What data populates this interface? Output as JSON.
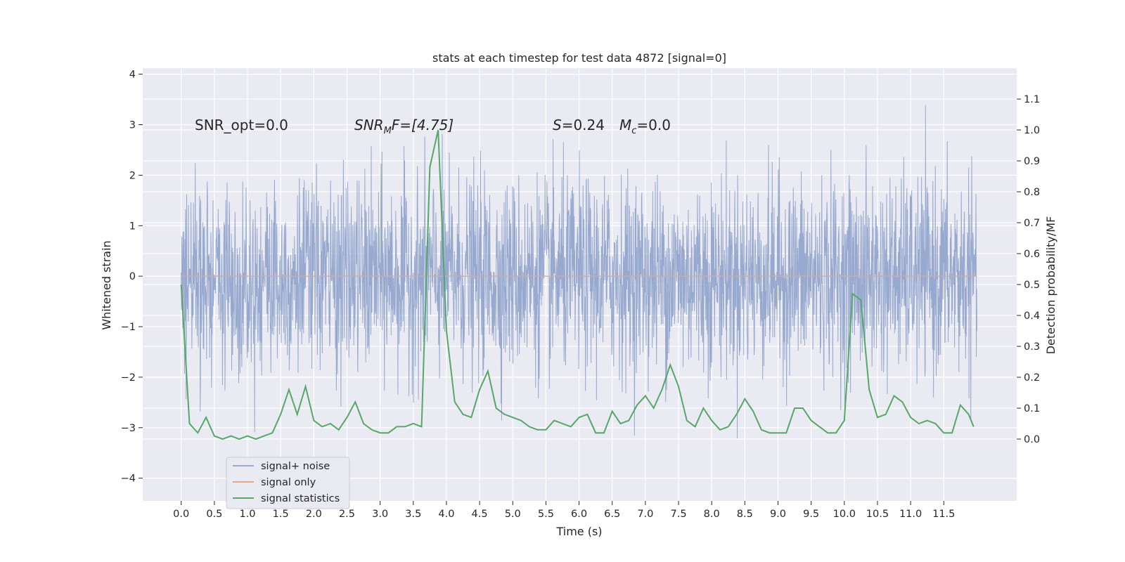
{
  "chart_data": {
    "type": "line",
    "title": "stats at each timestep for test data 4872 [signal=0]",
    "xlabel": "Time (s)",
    "ylabel_left": "Whitened strain",
    "ylabel_right": "Detection probability/MF",
    "xlim": [
      -0.58,
      12.6
    ],
    "ylim_left": [
      -4.45,
      4.12
    ],
    "ylim_right": [
      -0.2,
      1.2
    ],
    "x_ticks": [
      0.0,
      0.5,
      1.0,
      1.5,
      2.0,
      2.5,
      3.0,
      3.5,
      4.0,
      4.5,
      5.0,
      5.5,
      6.0,
      6.5,
      7.0,
      7.5,
      8.0,
      8.5,
      9.0,
      9.5,
      10.0,
      10.5,
      11.0,
      11.5
    ],
    "x_tick_labels": [
      "0.0",
      "0.5",
      "1.0",
      "1.5",
      "2.0",
      "2.5",
      "3.0",
      "3.5",
      "4.0",
      "4.5",
      "5.0",
      "5.5",
      "6.0",
      "6.5",
      "7.0",
      "7.5",
      "8.0",
      "8.5",
      "9.0",
      "9.5",
      "10.0",
      "10.5",
      "11.0",
      "11.5"
    ],
    "y_left_ticks": [
      -4,
      -3,
      -2,
      -1,
      0,
      1,
      2,
      3,
      4
    ],
    "y_left_tick_labels": [
      "−4",
      "−3",
      "−2",
      "−1",
      "0",
      "1",
      "2",
      "3",
      "4"
    ],
    "y_right_ticks": [
      0.0,
      0.1,
      0.2,
      0.3,
      0.4,
      0.5,
      0.6,
      0.7,
      0.8,
      0.9,
      1.0,
      1.1
    ],
    "y_right_tick_labels": [
      "0.0",
      "0.1",
      "0.2",
      "0.3",
      "0.4",
      "0.5",
      "0.6",
      "0.7",
      "0.8",
      "0.9",
      "1.0",
      "1.1"
    ],
    "grid": true,
    "legend_position": "lower-left",
    "annotations": {
      "snr_opt": "SNR_opt=0.0",
      "snr_mf_base": "SNR",
      "snr_mf_sub": "M",
      "snr_mf_rest": "F=[4.75]",
      "s_label": "S",
      "s_value": "=0.24",
      "mc_base": "M",
      "mc_sub": "c",
      "mc_value": "=0.0"
    },
    "series": [
      {
        "name": "signal+ noise",
        "axis": "left",
        "color": "#97a9cf",
        "x_range": [
          0.0,
          12.0
        ],
        "envelope_typical": [
          -1.7,
          1.7
        ],
        "envelope_max": [
          -4.1,
          3.8
        ],
        "note_values": "dense noise samples"
      },
      {
        "name": "signal only",
        "axis": "left",
        "color": "#e0a78b",
        "x": [
          0.0,
          12.0
        ],
        "values": [
          0.0,
          0.0
        ]
      },
      {
        "name": "signal statistics",
        "axis": "right",
        "color": "#55a868",
        "x": [
          0.0,
          0.125,
          0.25,
          0.375,
          0.5,
          0.625,
          0.75,
          0.875,
          1.0,
          1.125,
          1.25,
          1.375,
          1.5,
          1.625,
          1.75,
          1.875,
          2.0,
          2.125,
          2.25,
          2.375,
          2.5,
          2.625,
          2.75,
          2.875,
          3.0,
          3.125,
          3.25,
          3.375,
          3.5,
          3.625,
          3.75,
          3.875,
          4.0,
          4.125,
          4.25,
          4.375,
          4.5,
          4.625,
          4.75,
          4.875,
          5.0,
          5.125,
          5.25,
          5.375,
          5.5,
          5.625,
          5.75,
          5.875,
          6.0,
          6.125,
          6.25,
          6.375,
          6.5,
          6.625,
          6.75,
          6.875,
          7.0,
          7.125,
          7.25,
          7.375,
          7.5,
          7.625,
          7.75,
          7.875,
          8.0,
          8.125,
          8.25,
          8.375,
          8.5,
          8.625,
          8.75,
          8.875,
          9.0,
          9.125,
          9.25,
          9.375,
          9.5,
          9.625,
          9.75,
          9.875,
          10.0,
          10.125,
          10.25,
          10.375,
          10.5,
          10.625,
          10.75,
          10.875,
          11.0,
          11.125,
          11.25,
          11.375,
          11.5,
          11.625,
          11.75,
          11.875,
          11.95
        ],
        "values": [
          0.5,
          0.05,
          0.02,
          0.07,
          0.01,
          0.0,
          0.01,
          0.0,
          0.01,
          0.0,
          0.01,
          0.02,
          0.08,
          0.16,
          0.08,
          0.17,
          0.06,
          0.04,
          0.05,
          0.03,
          0.07,
          0.12,
          0.05,
          0.03,
          0.02,
          0.02,
          0.04,
          0.04,
          0.05,
          0.04,
          0.88,
          1.0,
          0.35,
          0.12,
          0.08,
          0.07,
          0.16,
          0.22,
          0.1,
          0.08,
          0.07,
          0.06,
          0.04,
          0.03,
          0.03,
          0.06,
          0.05,
          0.04,
          0.07,
          0.08,
          0.02,
          0.02,
          0.09,
          0.05,
          0.06,
          0.11,
          0.14,
          0.1,
          0.16,
          0.24,
          0.17,
          0.06,
          0.04,
          0.1,
          0.06,
          0.03,
          0.04,
          0.08,
          0.13,
          0.09,
          0.03,
          0.02,
          0.02,
          0.02,
          0.1,
          0.1,
          0.06,
          0.04,
          0.02,
          0.02,
          0.06,
          0.47,
          0.45,
          0.16,
          0.07,
          0.08,
          0.14,
          0.12,
          0.07,
          0.05,
          0.06,
          0.05,
          0.02,
          0.02,
          0.11,
          0.08,
          0.04
        ]
      }
    ]
  },
  "colors": {
    "figure_bg": "#ffffff",
    "axes_bg": "#eaeaf2",
    "grid": "#ffffff",
    "text": "#262626"
  }
}
